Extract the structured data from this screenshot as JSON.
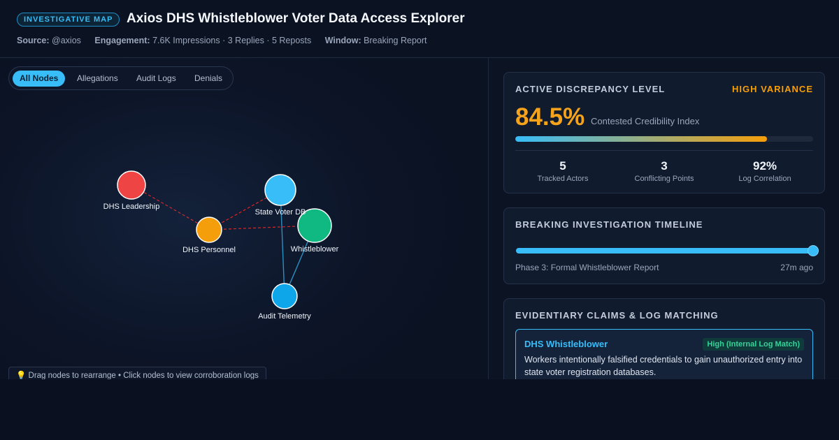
{
  "header": {
    "badge": "INVESTIGATIVE MAP",
    "title": "Axios DHS Whistleblower Voter Data Access Explorer",
    "source_label": "Source:",
    "source_value": "@axios",
    "engagement_label": "Engagement:",
    "engagement_value": "7.6K Impressions · 3 Replies · 5 Reposts",
    "window_label": "Window:",
    "window_value": "Breaking Report"
  },
  "filters": [
    {
      "label": "All Nodes",
      "active": true
    },
    {
      "label": "Allegations",
      "active": false
    },
    {
      "label": "Audit Logs",
      "active": false
    },
    {
      "label": "Denials",
      "active": false
    }
  ],
  "graph": {
    "nodes": [
      {
        "id": "leadership",
        "label": "DHS Leadership",
        "color": "#ef4444"
      },
      {
        "id": "personnel",
        "label": "DHS Personnel",
        "color": "#f59e0b"
      },
      {
        "id": "voterdb",
        "label": "State Voter DB",
        "color": "#38bdf8"
      },
      {
        "id": "whistleblower",
        "label": "Whistleblower",
        "color": "#10b981"
      },
      {
        "id": "audit",
        "label": "Audit Telemetry",
        "color": "#0ea5e9"
      }
    ],
    "edges": [
      {
        "from": "leadership",
        "to": "personnel",
        "style": "dashed",
        "color": "#dc2626"
      },
      {
        "from": "personnel",
        "to": "voterdb",
        "style": "dashed",
        "color": "#dc2626"
      },
      {
        "from": "personnel",
        "to": "whistleblower",
        "style": "dashed",
        "color": "#dc2626"
      },
      {
        "from": "voterdb",
        "to": "audit",
        "style": "solid",
        "color": "#2b8fc0"
      },
      {
        "from": "whistleblower",
        "to": "audit",
        "style": "solid",
        "color": "#2b8fc0"
      }
    ]
  },
  "hint": "💡 Drag nodes to rearrange • Click nodes to view corroboration logs",
  "discrepancy": {
    "title": "ACTIVE DISCREPANCY LEVEL",
    "variance": "HIGH VARIANCE",
    "percent": "84.5%",
    "percent_value": 84.5,
    "caption": "Contested Credibility Index",
    "stats": [
      {
        "value": "5",
        "label": "Tracked Actors"
      },
      {
        "value": "3",
        "label": "Conflicting Points"
      },
      {
        "value": "92%",
        "label": "Log Correlation"
      }
    ]
  },
  "timeline": {
    "title": "BREAKING INVESTIGATION TIMELINE",
    "slider_value": 1.0,
    "phase": "Phase 3: Formal Whistleblower Report",
    "ago": "27m ago"
  },
  "claims": {
    "title": "EVIDENTIARY CLAIMS & LOG MATCHING",
    "items": [
      {
        "source": "DHS Whistleblower",
        "badge": "High (Internal Log Match)",
        "text": "Workers intentionally falsified credentials to gain unauthorized entry into state voter registration databases."
      }
    ]
  },
  "colors": {
    "accent": "#38bdf8",
    "warning": "#f59e0b",
    "success": "#34d399"
  }
}
